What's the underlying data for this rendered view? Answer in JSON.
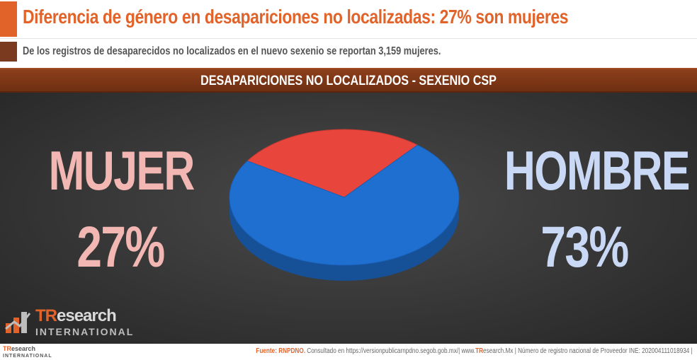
{
  "header": {
    "title": "Diferencia de género en desapariciones no localizadas: 27% son mujeres",
    "subtitle": "De los registros de desaparecidos no localizados en el nuevo sexenio se reportan 3,159 mujeres."
  },
  "section": {
    "title": "DESAPARICIONES NO LOCALIZADOS - SEXENIO CSP"
  },
  "chart_data": {
    "type": "pie",
    "title": "DESAPARICIONES NO LOCALIZADOS - SEXENIO CSP",
    "categories": [
      "MUJER",
      "HOMBRE"
    ],
    "values": [
      27,
      73
    ],
    "value_labels": [
      "27%",
      "73%"
    ],
    "colors": [
      "#e8453c",
      "#1f6fd1"
    ],
    "legend": "side labels (left and right)"
  },
  "labels": {
    "mujer": "MUJER",
    "mujer_pct": "27%",
    "hombre": "HOMBRE",
    "hombre_pct": "73%"
  },
  "logo": {
    "brand_tr": "TR",
    "brand_rest": "esearch",
    "brand_sub": "INTERNATIONAL"
  },
  "footer": {
    "source_label": "Fuente: RNPDNO.",
    "consulted": " Consultado en https://versionpublicarnpdno.segob.gob.mx/| www.",
    "site_tr": "TR",
    "site_rest": "esearch.Mx | Número de registro nacional de Proveedor INE: 202004111018934 |",
    "logo_tr": "TR",
    "logo_rest": "esearch",
    "logo_sub": "INTERNATIONAL"
  }
}
